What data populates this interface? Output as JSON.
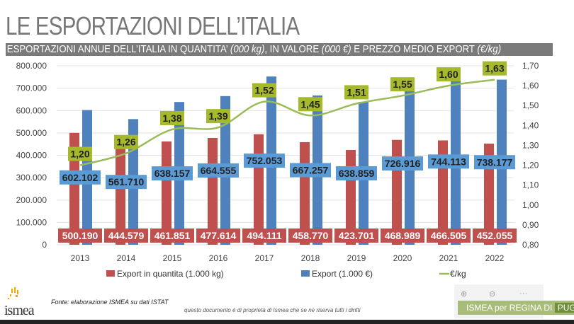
{
  "slide": {
    "title": "LE ESPORTAZIONI DELL’ITALIA",
    "subtitle_parts": [
      "ESPORTAZIONI ANNUE DELL’ITALIA IN QUANTITA’ ",
      "(000 kg)",
      ", IN VALORE ",
      "(000 €)",
      " E PREZZO MEDIO EXPORT ",
      "(€/kg)"
    ],
    "source": "Fonte: elaborazione ISMEA su dati ISTAT",
    "copyright": "questo documento è di proprietà di Ismea che se ne riserva tutti i diritti",
    "logo_text": "ismea",
    "badge": {
      "part1": "ISMEA per REGINA DI ",
      "part2": "PUGLIA"
    },
    "viewer": {
      "zoom_in": "⊕",
      "zoom_out": "⊖",
      "more": "···"
    }
  },
  "chart_data": {
    "type": "bar+line",
    "categories": [
      "2013",
      "2014",
      "2015",
      "2016",
      "2017",
      "2018",
      "2019",
      "2020",
      "2021",
      "2022"
    ],
    "series": [
      {
        "name": "Export in quantita (1.000 kg)",
        "type": "bar",
        "axis": "left",
        "color": "#c0504d",
        "values": [
          500190,
          444579,
          461851,
          477614,
          494111,
          458770,
          423701,
          468989,
          466505,
          452055
        ],
        "labels": [
          "500.190",
          "444.579",
          "461.851",
          "477.614",
          "494.111",
          "458.770",
          "423.701",
          "468.989",
          "466.505",
          "452.055"
        ]
      },
      {
        "name": "Export (1.000 €)",
        "type": "bar",
        "axis": "left",
        "color": "#4f81bd",
        "values": [
          602102,
          561710,
          638157,
          664555,
          752053,
          667257,
          638859,
          726916,
          744113,
          738177
        ],
        "labels": [
          "602.102",
          "561.710",
          "638.157",
          "664.555",
          "752.053",
          "667.257",
          "638.859",
          "726.916",
          "744.113",
          "738.177"
        ]
      },
      {
        "name": "€/kg",
        "type": "line",
        "axis": "right",
        "color": "#9bbb59",
        "values": [
          1.2,
          1.26,
          1.38,
          1.39,
          1.52,
          1.45,
          1.51,
          1.55,
          1.6,
          1.63
        ],
        "labels": [
          "1,20",
          "1,26",
          "1,38",
          "1,39",
          "1,52",
          "1,45",
          "1,51",
          "1,55",
          "1,60",
          "1,63"
        ]
      }
    ],
    "ylim_left": [
      0,
      800000
    ],
    "ylim_right": [
      0.8,
      1.7
    ],
    "left_ticks": [
      "0",
      "100.000",
      "200.000",
      "300.000",
      "400.000",
      "500.000",
      "600.000",
      "700.000",
      "800.000"
    ],
    "right_ticks": [
      "0,80",
      "0,90",
      "1,00",
      "1,10",
      "1,20",
      "1,30",
      "1,40",
      "1,50",
      "1,60",
      "1,70"
    ],
    "grid": true,
    "legend": "bottom",
    "label_colors": {
      "price_box": "#a5b92a",
      "value_box": "#5b9bd5",
      "qty_box": "#c0504d"
    }
  }
}
